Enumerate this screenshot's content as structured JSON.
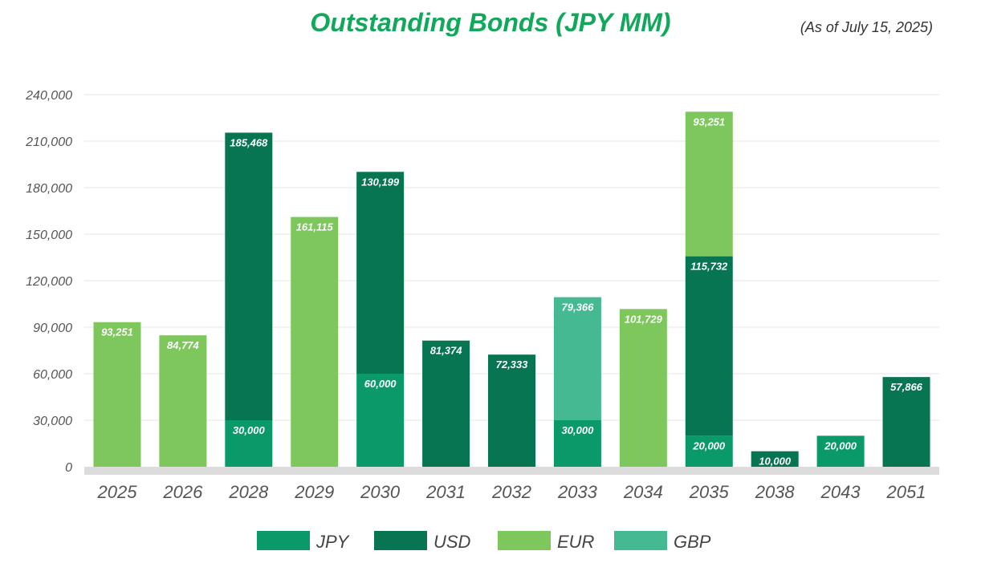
{
  "chart_data": {
    "type": "bar",
    "stacked": true,
    "title": "Outstanding Bonds (JPY MM)",
    "subtitle": "(As of July 15, 2025)",
    "categories": [
      "2025",
      "2026",
      "2028",
      "2029",
      "2030",
      "2031",
      "2032",
      "2033",
      "2034",
      "2035",
      "2038",
      "2043",
      "2051"
    ],
    "series": [
      {
        "name": "JPY",
        "color": "#0a9a6a",
        "values": [
          0,
          0,
          30000,
          0,
          60000,
          0,
          0,
          30000,
          0,
          20000,
          0,
          20000,
          0
        ]
      },
      {
        "name": "USD",
        "color": "#077552",
        "values": [
          0,
          0,
          185468,
          0,
          130199,
          81374,
          72333,
          0,
          0,
          115732,
          10000,
          0,
          57866
        ]
      },
      {
        "name": "EUR",
        "color": "#7dc75c",
        "values": [
          93251,
          84774,
          0,
          161115,
          0,
          0,
          0,
          0,
          101729,
          93251,
          0,
          0,
          0
        ]
      },
      {
        "name": "GBP",
        "color": "#45b992",
        "values": [
          0,
          0,
          0,
          0,
          0,
          0,
          0,
          79366,
          0,
          0,
          0,
          0,
          0
        ]
      }
    ],
    "ylim": [
      0,
      240000
    ],
    "yticks": [
      0,
      30000,
      60000,
      90000,
      120000,
      150000,
      180000,
      210000,
      240000
    ],
    "ytick_labels": [
      "0",
      "30,000",
      "60,000",
      "90,000",
      "120,000",
      "150,000",
      "180,000",
      "210,000",
      "240,000"
    ],
    "grid": true,
    "legend_position": "bottom"
  }
}
